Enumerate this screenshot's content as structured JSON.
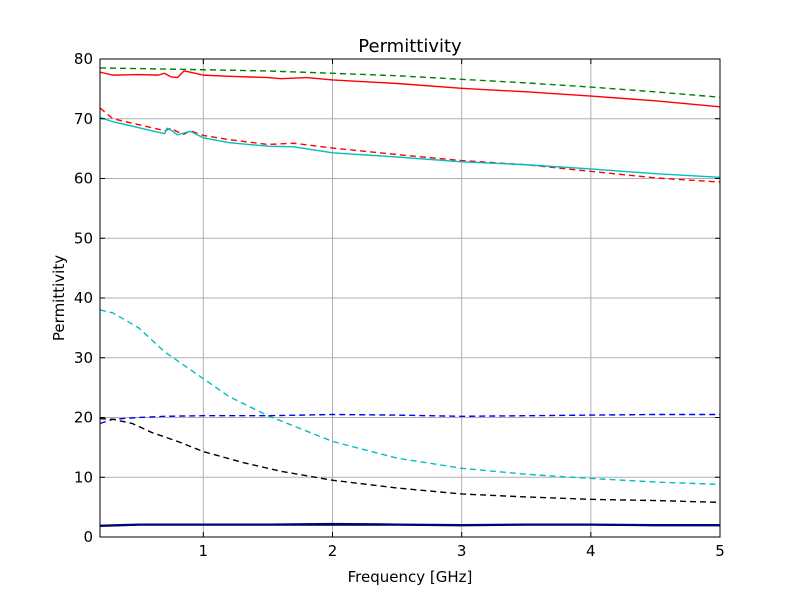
{
  "chart_data": {
    "type": "line",
    "title": "Permittivity",
    "xlabel": "Frequency [GHz]",
    "ylabel": "Permittivity",
    "xlim": [
      0.2,
      5.0
    ],
    "ylim": [
      0,
      80
    ],
    "xticks": [
      1,
      2,
      3,
      4,
      5
    ],
    "yticks": [
      0,
      10,
      20,
      30,
      40,
      50,
      60,
      70,
      80
    ],
    "grid": true,
    "series": [
      {
        "color": "#008000",
        "style": "dashed",
        "x": [
          0.2,
          0.5,
          1.0,
          1.5,
          2.0,
          2.5,
          3.0,
          3.5,
          4.0,
          4.5,
          5.0
        ],
        "values": [
          78.5,
          78.4,
          78.2,
          78.0,
          77.6,
          77.2,
          76.6,
          76.0,
          75.3,
          74.5,
          73.6
        ]
      },
      {
        "color": "#ff0000",
        "style": "solid",
        "x": [
          0.2,
          0.3,
          0.5,
          0.65,
          0.7,
          0.75,
          0.8,
          0.85,
          0.9,
          1.0,
          1.2,
          1.5,
          1.6,
          1.8,
          2.0,
          2.5,
          3.0,
          3.5,
          4.0,
          4.5,
          5.0
        ],
        "values": [
          77.8,
          77.3,
          77.4,
          77.3,
          77.6,
          77.0,
          76.9,
          78.0,
          77.8,
          77.3,
          77.1,
          76.9,
          76.7,
          76.9,
          76.5,
          75.9,
          75.1,
          74.5,
          73.8,
          73.0,
          72.0
        ]
      },
      {
        "color": "#ff0000",
        "style": "dashed",
        "x": [
          0.2,
          0.3,
          0.5,
          0.7,
          0.75,
          0.8,
          0.85,
          0.9,
          1.0,
          1.2,
          1.5,
          1.7,
          2.0,
          2.5,
          3.0,
          3.5,
          4.0,
          4.5,
          5.0
        ],
        "values": [
          71.8,
          70.0,
          69.0,
          68.0,
          68.4,
          67.8,
          67.4,
          68.0,
          67.2,
          66.5,
          65.7,
          65.9,
          65.1,
          64.0,
          63.0,
          62.3,
          61.2,
          60.1,
          59.4
        ]
      },
      {
        "color": "#00bfbf",
        "style": "solid",
        "x": [
          0.2,
          0.3,
          0.5,
          0.7,
          0.72,
          0.75,
          0.8,
          0.85,
          0.9,
          1.0,
          1.2,
          1.5,
          1.7,
          2.0,
          2.5,
          3.0,
          3.5,
          4.0,
          4.5,
          5.0
        ],
        "values": [
          70.2,
          69.5,
          68.5,
          67.5,
          68.4,
          68.1,
          67.3,
          67.6,
          67.9,
          66.8,
          66.0,
          65.4,
          65.3,
          64.3,
          63.6,
          62.8,
          62.3,
          61.6,
          60.8,
          60.2
        ]
      },
      {
        "color": "#00bfbf",
        "style": "dashed",
        "x": [
          0.2,
          0.3,
          0.5,
          0.7,
          1.0,
          1.2,
          1.5,
          2.0,
          2.5,
          3.0,
          3.5,
          4.0,
          4.5,
          5.0
        ],
        "values": [
          38.0,
          37.5,
          35.0,
          31.0,
          26.5,
          23.5,
          20.3,
          16.0,
          13.2,
          11.5,
          10.5,
          9.8,
          9.2,
          8.8
        ]
      },
      {
        "color": "#0000ff",
        "style": "dashed",
        "x": [
          0.2,
          0.3,
          0.5,
          0.7,
          1.0,
          1.5,
          2.0,
          2.5,
          3.0,
          3.5,
          4.0,
          4.5,
          5.0
        ],
        "values": [
          19.0,
          19.7,
          20.0,
          20.2,
          20.3,
          20.3,
          20.5,
          20.4,
          20.2,
          20.3,
          20.4,
          20.5,
          20.5
        ]
      },
      {
        "color": "#000000",
        "style": "dashed",
        "x": [
          0.2,
          0.3,
          0.45,
          0.6,
          0.8,
          1.0,
          1.3,
          1.6,
          2.0,
          2.5,
          3.0,
          3.5,
          4.0,
          4.5,
          5.0
        ],
        "values": [
          19.8,
          19.7,
          19.0,
          17.5,
          16.0,
          14.3,
          12.5,
          11.0,
          9.5,
          8.2,
          7.2,
          6.7,
          6.3,
          6.1,
          5.8
        ]
      },
      {
        "color": "#000000",
        "style": "solid",
        "x": [
          0.2,
          0.5,
          1.0,
          1.5,
          2.0,
          2.5,
          3.0,
          3.5,
          4.0,
          4.5,
          5.0
        ],
        "values": [
          1.8,
          2.0,
          2.0,
          2.0,
          2.0,
          2.0,
          1.9,
          2.0,
          2.0,
          1.9,
          1.9
        ]
      },
      {
        "color": "#00008b",
        "style": "solid",
        "x": [
          0.2,
          0.5,
          1.0,
          1.5,
          2.0,
          2.5,
          3.0,
          3.5,
          4.0,
          4.5,
          5.0
        ],
        "values": [
          1.9,
          2.1,
          2.1,
          2.1,
          2.2,
          2.1,
          2.0,
          2.1,
          2.1,
          2.0,
          2.0
        ]
      }
    ]
  }
}
